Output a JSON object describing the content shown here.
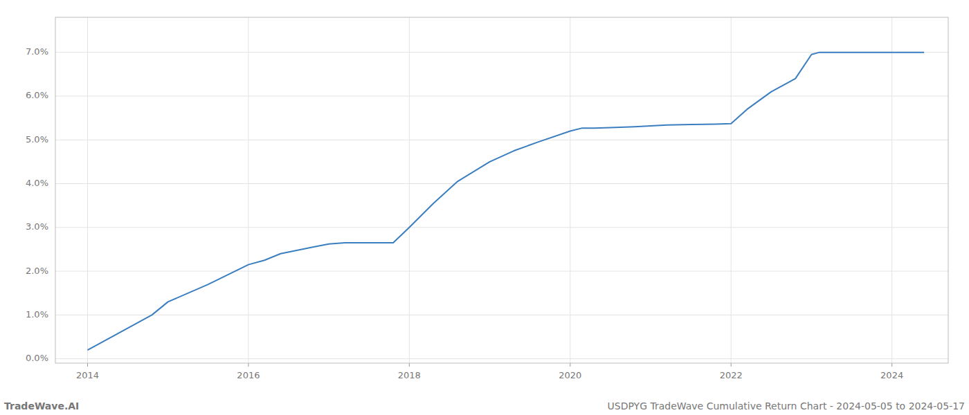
{
  "chart_data": {
    "type": "line",
    "x": [
      2014.0,
      2014.3,
      2014.8,
      2015.0,
      2015.5,
      2016.0,
      2016.2,
      2016.4,
      2016.8,
      2017.0,
      2017.2,
      2017.5,
      2017.8,
      2018.0,
      2018.3,
      2018.6,
      2019.0,
      2019.3,
      2019.6,
      2020.0,
      2020.15,
      2020.3,
      2020.5,
      2020.8,
      2021.0,
      2021.2,
      2021.5,
      2021.8,
      2022.0,
      2022.2,
      2022.5,
      2022.8,
      2023.0,
      2023.1,
      2023.3,
      2023.5,
      2024.0,
      2024.4
    ],
    "values": [
      0.2,
      0.5,
      1.0,
      1.3,
      1.7,
      2.15,
      2.25,
      2.4,
      2.55,
      2.62,
      2.65,
      2.65,
      2.65,
      3.0,
      3.55,
      4.05,
      4.5,
      4.75,
      4.95,
      5.2,
      5.27,
      5.27,
      5.28,
      5.3,
      5.32,
      5.34,
      5.35,
      5.36,
      5.37,
      5.7,
      6.1,
      6.4,
      6.95,
      7.0,
      7.0,
      7.0,
      7.0,
      7.0
    ],
    "color": "#3a7ebf",
    "xlim": [
      2013.6,
      2024.7
    ],
    "ylim": [
      -0.1,
      7.8
    ],
    "xticks": [
      2014,
      2016,
      2018,
      2020,
      2022,
      2024
    ],
    "yticks": [
      {
        "value": 0.0,
        "label": "0.0%"
      },
      {
        "value": 1.0,
        "label": "1.0%"
      },
      {
        "value": 2.0,
        "label": "2.0%"
      },
      {
        "value": 3.0,
        "label": "3.0%"
      },
      {
        "value": 4.0,
        "label": "4.0%"
      },
      {
        "value": 5.0,
        "label": "5.0%"
      },
      {
        "value": 6.0,
        "label": "6.0%"
      },
      {
        "value": 7.0,
        "label": "7.0%"
      }
    ],
    "grid": true,
    "annotations": [
      "TradeWave.AI",
      "USDPYG TradeWave Cumulative Return Chart - 2024-05-05 to 2024-05-17"
    ]
  }
}
